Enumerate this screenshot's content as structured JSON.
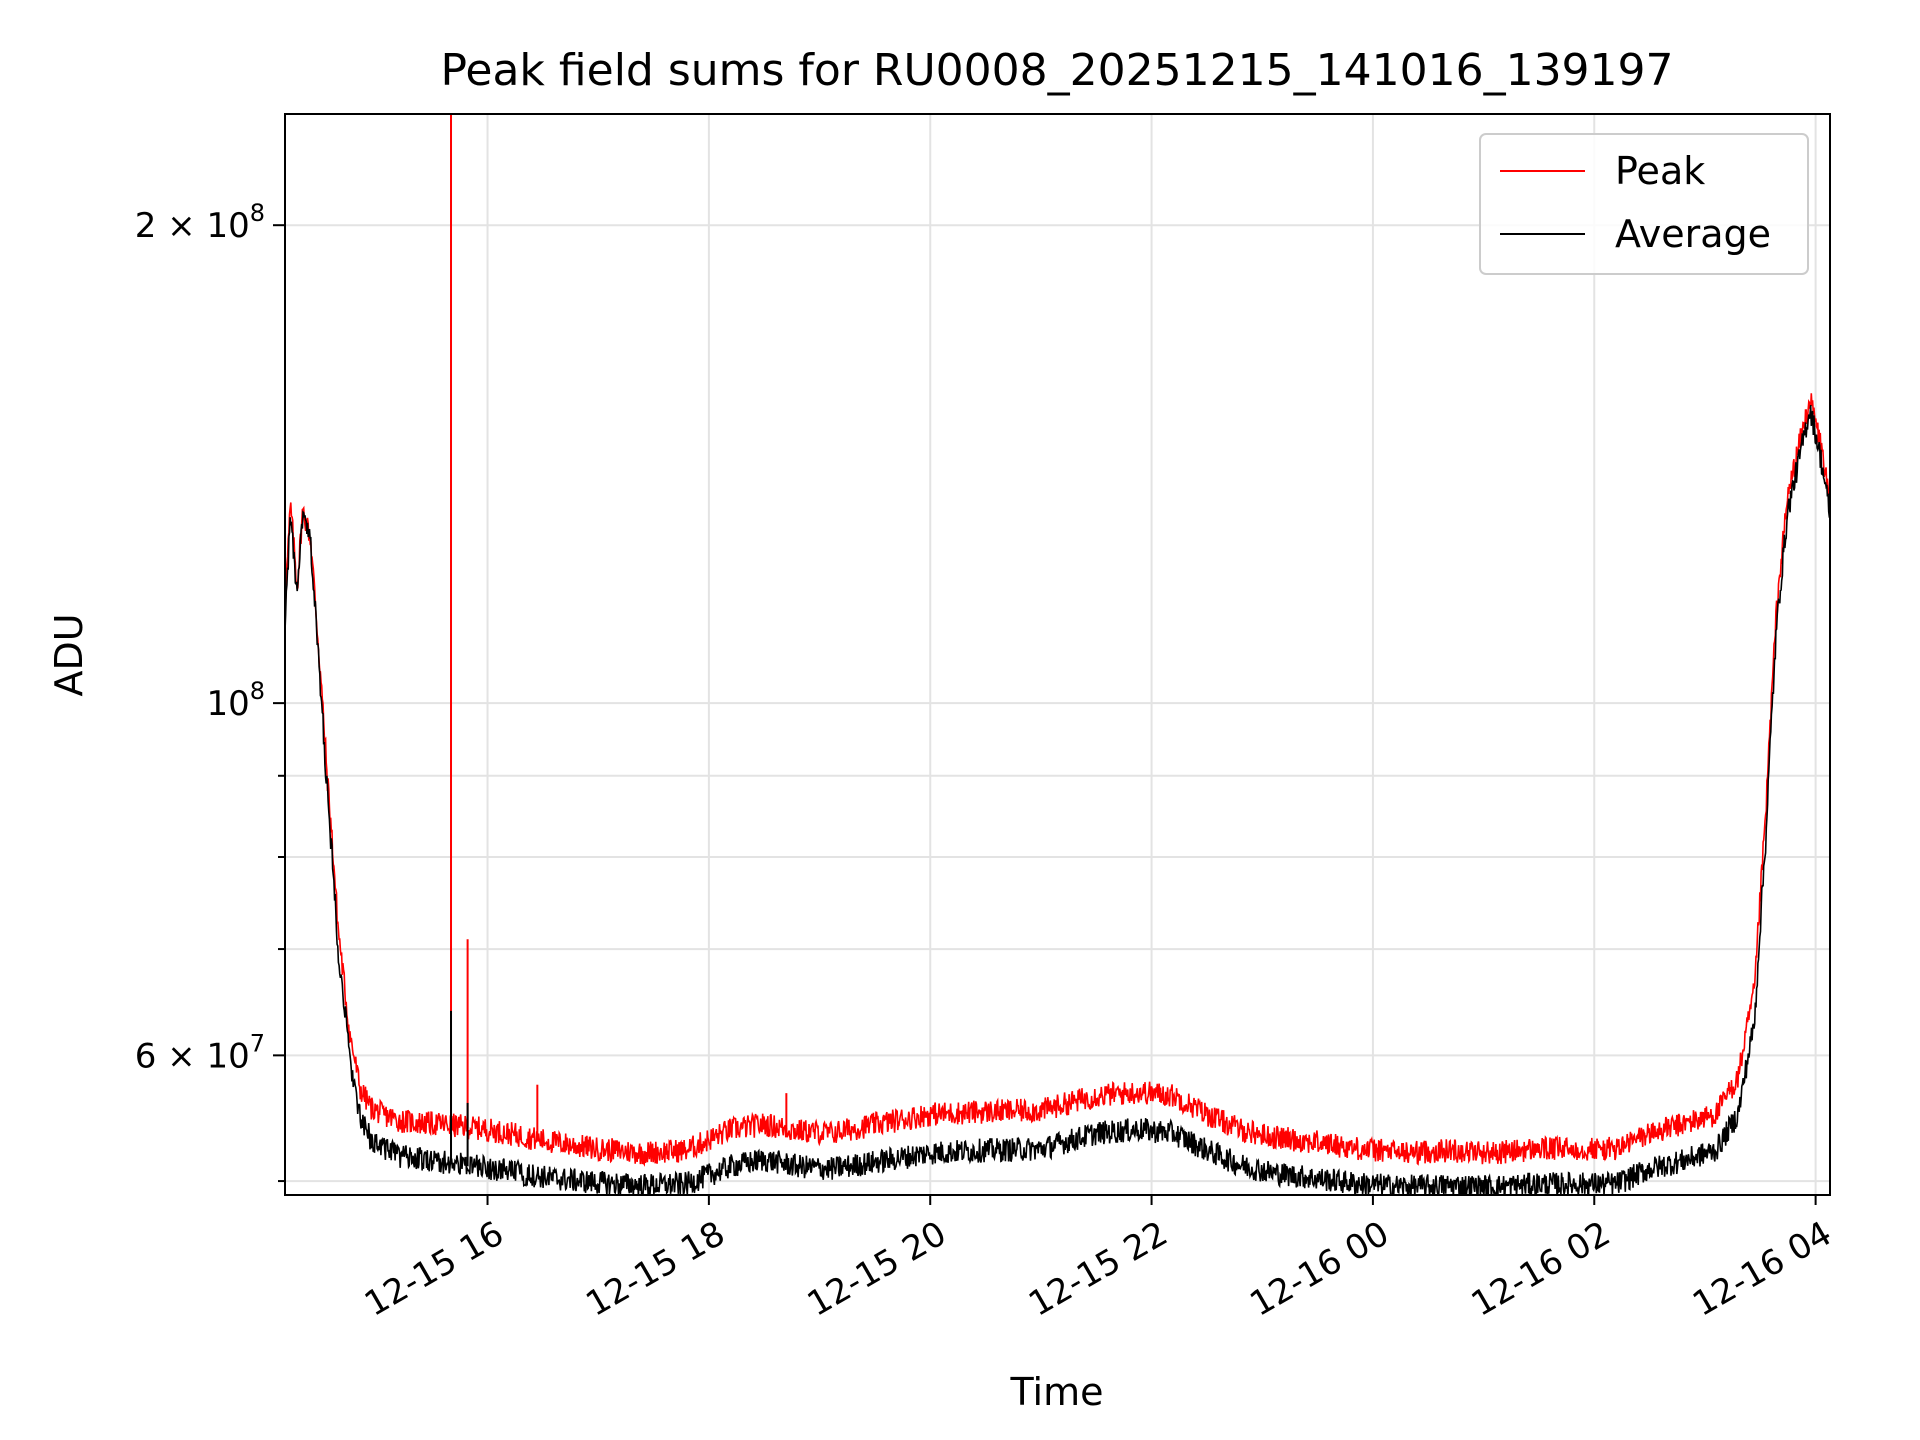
{
  "chart_data": {
    "type": "line",
    "title": "Peak field sums for RU0008_20251215_141016_139197",
    "xlabel": "Time",
    "ylabel": "ADU",
    "yscale": "log",
    "ylim": [
      49000000,
      235000000
    ],
    "xlim": [
      14.17,
      28.13
    ],
    "grid": true,
    "legend_position": "top-right",
    "x_ticks": [
      {
        "value": 16,
        "label": "12-15 16"
      },
      {
        "value": 18,
        "label": "12-15 18"
      },
      {
        "value": 20,
        "label": "12-15 20"
      },
      {
        "value": 22,
        "label": "12-15 22"
      },
      {
        "value": 24,
        "label": "12-16 00"
      },
      {
        "value": 26,
        "label": "12-16 02"
      },
      {
        "value": 28,
        "label": "12-16 04"
      }
    ],
    "y_ticks": [
      {
        "value": 200000000,
        "mantissa": "2",
        "exponent": "8"
      },
      {
        "value": 100000000,
        "mantissa": "",
        "exponent": "8"
      },
      {
        "value": 60000000,
        "mantissa": "6",
        "exponent": "7"
      }
    ],
    "y_minor_ticks": [
      50000000,
      70000000,
      80000000,
      90000000
    ],
    "x_unit_note": "hours since 2025-12-15 00:00",
    "series": [
      {
        "name": "Peak",
        "color": "#ff0000",
        "x": [
          14.17,
          14.22,
          14.28,
          14.33,
          14.4,
          14.47,
          14.55,
          14.65,
          14.75,
          14.85,
          14.95,
          15.05,
          15.2,
          15.4,
          15.6,
          15.8,
          16.0,
          16.3,
          16.6,
          17.0,
          17.4,
          17.8,
          18.2,
          18.5,
          18.8,
          19.1,
          19.5,
          20.0,
          20.5,
          21.0,
          21.5,
          21.9,
          22.2,
          22.5,
          22.8,
          23.1,
          23.5,
          23.9,
          24.3,
          24.7,
          25.1,
          25.5,
          25.9,
          26.2,
          26.5,
          26.8,
          27.1,
          27.3,
          27.45,
          27.55,
          27.65,
          27.75,
          27.85,
          27.95,
          28.05,
          28.13
        ],
        "y": [
          115000000,
          133000000,
          118000000,
          132000000,
          127000000,
          109000000,
          90000000,
          72000000,
          62000000,
          57000000,
          55500000,
          55000000,
          54500000,
          54300000,
          54200000,
          54000000,
          53800000,
          53300000,
          52800000,
          52300000,
          52000000,
          52200000,
          53800000,
          54200000,
          53700000,
          53500000,
          54200000,
          55000000,
          55200000,
          55300000,
          56500000,
          56800000,
          56500000,
          55000000,
          53800000,
          53200000,
          52800000,
          52300000,
          52000000,
          52200000,
          52000000,
          52300000,
          52300000,
          52300000,
          53500000,
          54200000,
          55000000,
          58000000,
          66000000,
          85000000,
          115000000,
          135000000,
          145000000,
          155000000,
          145000000,
          133000000
        ],
        "spikes": [
          {
            "x": 15.67,
            "y": 235000000
          },
          {
            "x": 15.82,
            "y": 71000000
          },
          {
            "x": 16.45,
            "y": 57500000
          },
          {
            "x": 18.7,
            "y": 56800000
          },
          {
            "x": 27.5,
            "y": 75000000
          }
        ]
      },
      {
        "name": "Average",
        "color": "#000000",
        "x": [
          14.17,
          14.22,
          14.28,
          14.33,
          14.4,
          14.47,
          14.55,
          14.65,
          14.75,
          14.85,
          14.95,
          15.05,
          15.2,
          15.4,
          15.6,
          15.8,
          16.0,
          16.3,
          16.6,
          17.0,
          17.4,
          17.8,
          18.2,
          18.5,
          18.8,
          19.1,
          19.5,
          20.0,
          20.5,
          21.0,
          21.5,
          21.9,
          22.2,
          22.5,
          22.8,
          23.1,
          23.5,
          23.9,
          24.3,
          24.7,
          25.1,
          25.5,
          25.9,
          26.2,
          26.5,
          26.8,
          27.1,
          27.3,
          27.45,
          27.55,
          27.65,
          27.75,
          27.85,
          27.95,
          28.05,
          28.13
        ],
        "y": [
          112000000,
          131000000,
          116000000,
          131000000,
          126000000,
          107000000,
          88000000,
          70000000,
          60000000,
          54500000,
          53000000,
          52500000,
          51800000,
          51500000,
          51300000,
          51100000,
          50900000,
          50500000,
          50100000,
          49800000,
          49600000,
          49700000,
          51000000,
          51500000,
          51000000,
          50800000,
          51300000,
          52000000,
          52200000,
          52300000,
          53500000,
          53800000,
          53500000,
          52200000,
          51100000,
          50500000,
          50100000,
          49700000,
          49500000,
          49600000,
          49500000,
          49700000,
          49700000,
          49700000,
          50800000,
          51400000,
          52200000,
          55000000,
          63000000,
          82000000,
          112000000,
          132000000,
          142000000,
          153000000,
          142000000,
          131000000
        ],
        "spikes": [
          {
            "x": 15.67,
            "y": 64000000
          },
          {
            "x": 15.82,
            "y": 56000000
          }
        ]
      }
    ]
  }
}
